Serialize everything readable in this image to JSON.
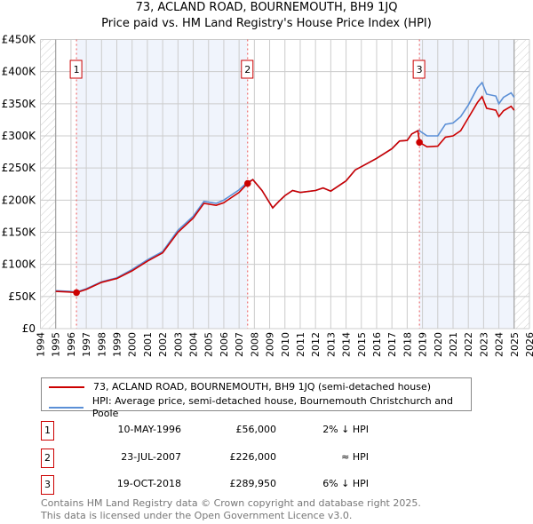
{
  "title": "73, ACLAND ROAD, BOURNEMOUTH, BH9 1JQ",
  "subtitle": "Price paid vs. HM Land Registry's House Price Index (HPI)",
  "chart_data": {
    "type": "line",
    "xlim": [
      1994,
      2026
    ],
    "ylim": [
      0,
      450000
    ],
    "x_ticks": [
      "1994",
      "1995",
      "1996",
      "1997",
      "1998",
      "1999",
      "2000",
      "2001",
      "2002",
      "2003",
      "2004",
      "2005",
      "2006",
      "2007",
      "2008",
      "2009",
      "2010",
      "2011",
      "2012",
      "2013",
      "2014",
      "2015",
      "2016",
      "2017",
      "2018",
      "2019",
      "2020",
      "2021",
      "2022",
      "2023",
      "2024",
      "2025",
      "2026"
    ],
    "y_ticks": [
      {
        "v": 0,
        "label": "£0"
      },
      {
        "v": 50000,
        "label": "£50K"
      },
      {
        "v": 100000,
        "label": "£100K"
      },
      {
        "v": 150000,
        "label": "£150K"
      },
      {
        "v": 200000,
        "label": "£200K"
      },
      {
        "v": 250000,
        "label": "£250K"
      },
      {
        "v": 300000,
        "label": "£300K"
      },
      {
        "v": 350000,
        "label": "£350K"
      },
      {
        "v": 400000,
        "label": "£400K"
      },
      {
        "v": 450000,
        "label": "£450K"
      }
    ],
    "series": [
      {
        "name": "73, ACLAND ROAD, BOURNEMOUTH, BH9 1JQ (semi-detached house)",
        "color": "#cc0000",
        "x": [
          1995,
          1995.9,
          1996.36,
          1997,
          1998,
          1999,
          2000,
          2001,
          2002,
          2003,
          2004,
          2004.7,
          2005.5,
          2006,
          2007,
          2007.55,
          2007.9,
          2008.5,
          2009.2,
          2009.6,
          2010,
          2010.5,
          2011,
          2012,
          2012.5,
          2013,
          2013.5,
          2014,
          2014.6,
          2015,
          2016,
          2017,
          2017.5,
          2018,
          2018.3,
          2018.7,
          2018.8,
          2019.3,
          2020,
          2020.5,
          2021,
          2021.5,
          2022,
          2022.6,
          2022.9,
          2023.2,
          2023.8,
          2024,
          2024.3,
          2024.8,
          2025
        ],
        "y": [
          58000,
          57000,
          56000,
          61000,
          72000,
          78000,
          90000,
          105000,
          118000,
          150000,
          172000,
          195000,
          192000,
          196000,
          212000,
          226000,
          232000,
          215000,
          188000,
          198000,
          207000,
          215000,
          212000,
          215000,
          219000,
          214000,
          222000,
          230000,
          247000,
          252000,
          265000,
          280000,
          292000,
          293000,
          303000,
          308000,
          290000,
          283000,
          284000,
          298000,
          300000,
          308000,
          328000,
          352000,
          361000,
          343000,
          340000,
          330000,
          339000,
          346000,
          340000
        ]
      },
      {
        "name": "HPI: Average price, semi-detached house, Bournemouth Christchurch and Poole",
        "color": "#5b8fd6",
        "x": [
          1995,
          1995.9,
          1996.36,
          1997,
          1998,
          1999,
          2000,
          2001,
          2002,
          2003,
          2004,
          2004.7,
          2005.5,
          2006,
          2007,
          2007.55,
          2007.9,
          2008.5,
          2009.2,
          2009.6,
          2010,
          2010.5,
          2011,
          2012,
          2012.5,
          2013,
          2013.5,
          2014,
          2014.6,
          2015,
          2016,
          2017,
          2017.5,
          2018,
          2018.3,
          2018.7,
          2018.8,
          2019.3,
          2020,
          2020.5,
          2021,
          2021.5,
          2022,
          2022.6,
          2022.9,
          2023.2,
          2023.8,
          2024,
          2024.3,
          2024.8,
          2025
        ],
        "y": [
          59000,
          58000,
          57000,
          62000,
          73000,
          79000,
          92000,
          107000,
          120000,
          153000,
          175000,
          198000,
          195000,
          200000,
          216000,
          228000,
          232000,
          215000,
          188000,
          198000,
          207000,
          215000,
          212000,
          215000,
          219000,
          214000,
          222000,
          230000,
          247000,
          252000,
          265000,
          280000,
          292000,
          293000,
          303000,
          308000,
          308000,
          300000,
          300000,
          318000,
          320000,
          330000,
          348000,
          375000,
          383000,
          365000,
          362000,
          350000,
          360000,
          367000,
          360000
        ]
      }
    ],
    "sales": [
      {
        "id": "1",
        "x": 1996.36,
        "y": 56000,
        "date": "10-MAY-1996",
        "price": "£56,000",
        "hpi": "2% ↓ HPI"
      },
      {
        "id": "2",
        "x": 2007.56,
        "y": 226000,
        "date": "23-JUL-2007",
        "price": "£226,000",
        "hpi": "≈ HPI"
      },
      {
        "id": "3",
        "x": 2018.8,
        "y": 289950,
        "date": "19-OCT-2018",
        "price": "£289,950",
        "hpi": "6% ↓ HPI"
      }
    ]
  },
  "footer": [
    "Contains HM Land Registry data © Crown copyright and database right 2025.",
    "This data is licensed under the Open Government Licence v3.0."
  ]
}
